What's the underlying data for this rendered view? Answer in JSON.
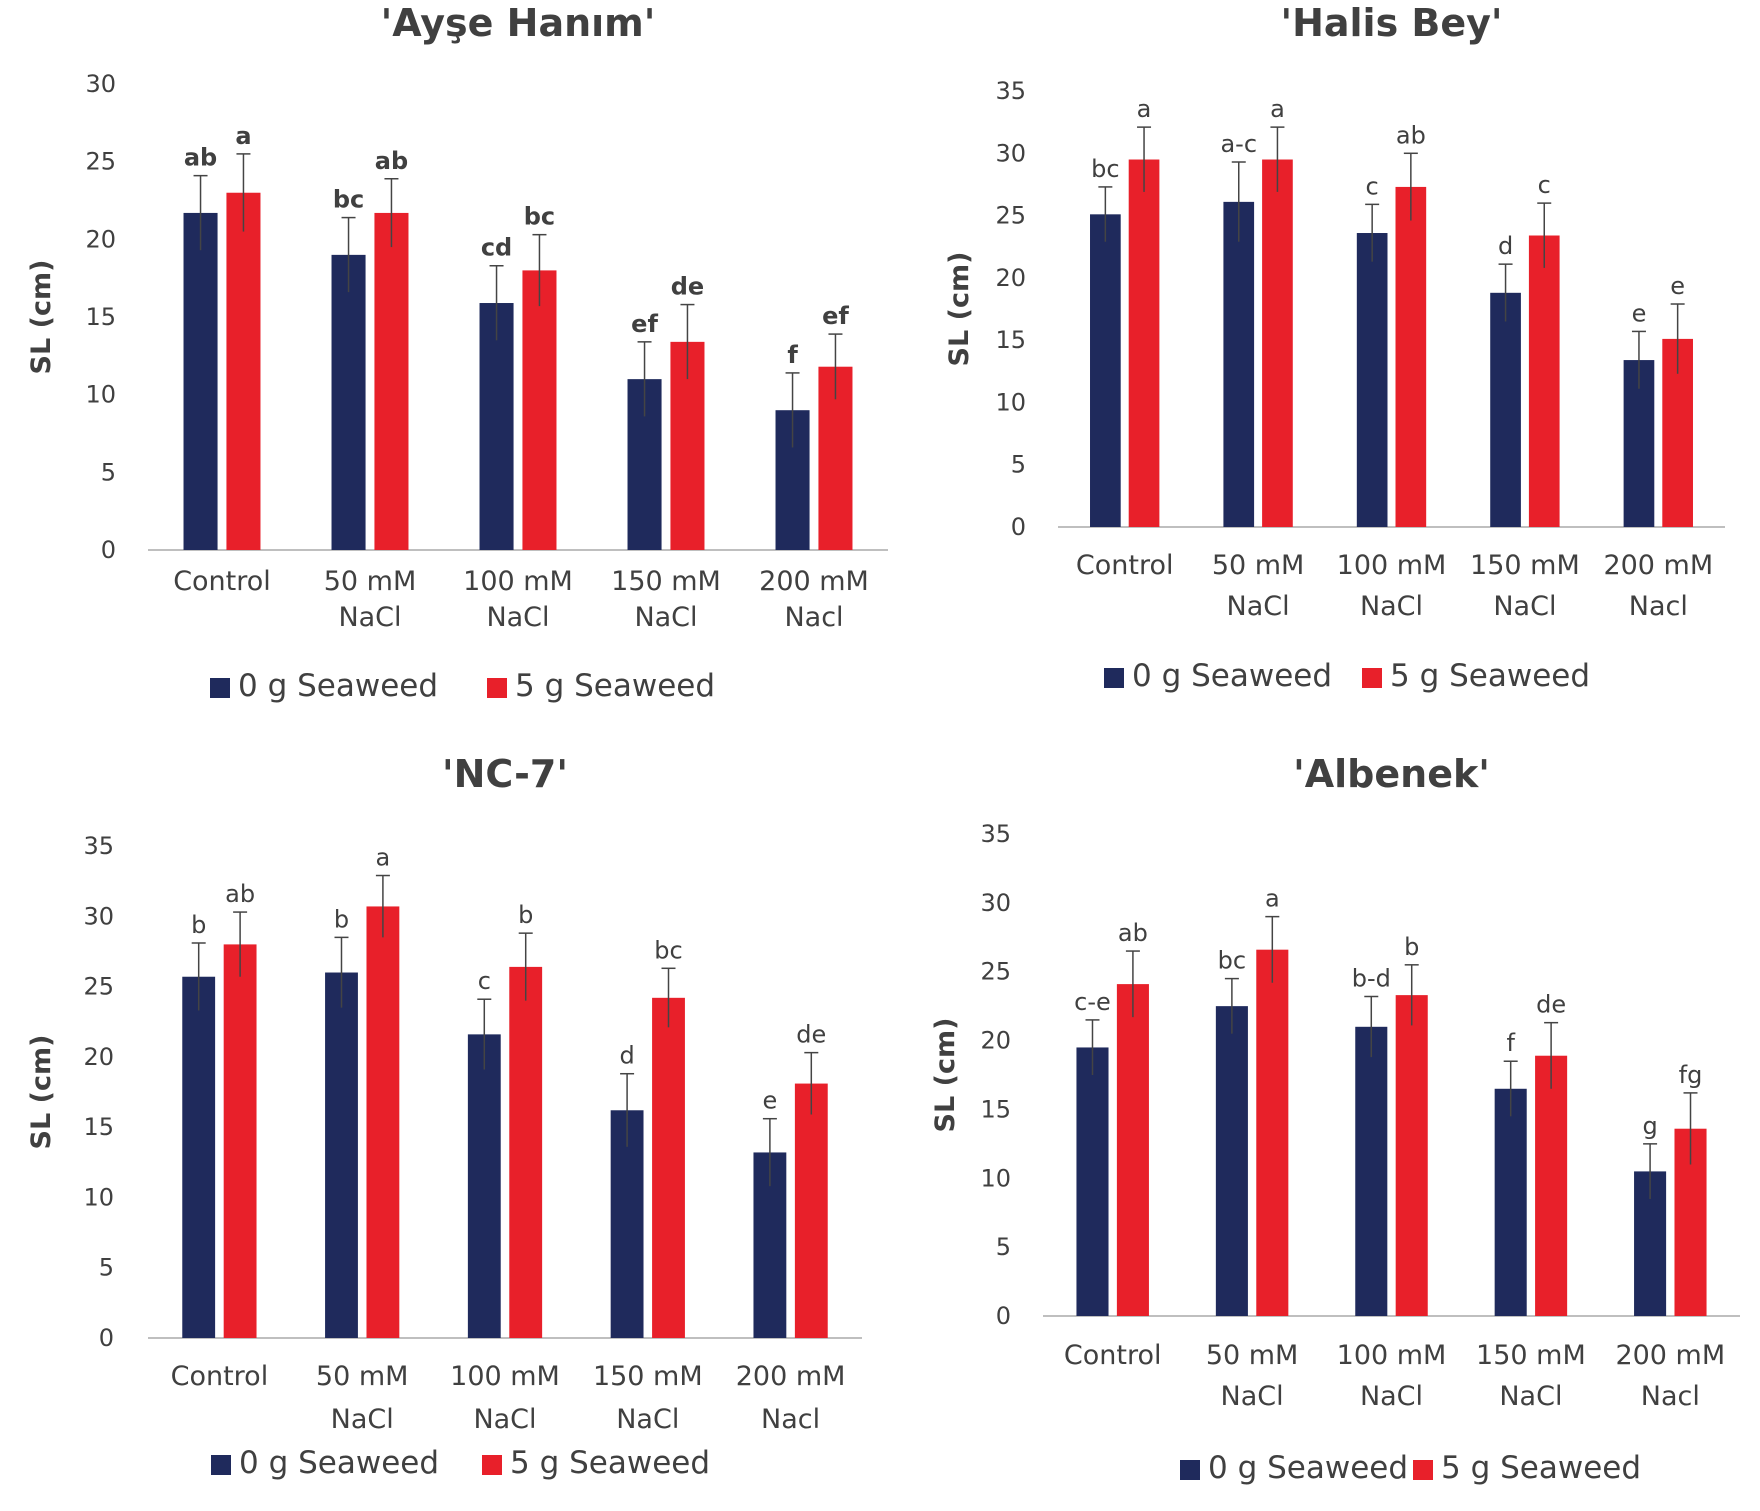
{
  "colors": {
    "series0": "#1f2a5c",
    "series1": "#e8202a",
    "text": "#404040",
    "axis": "#bfbfbf"
  },
  "legend": {
    "series0": "0 g Seaweed",
    "series1": "5 g Seaweed"
  },
  "chart_data": [
    {
      "type": "bar",
      "title": "'Ayşe Hanım'",
      "ylabel": "SL (cm)",
      "xlabel": "",
      "ylim": [
        0,
        30
      ],
      "yticks": [
        0,
        5,
        10,
        15,
        20,
        25,
        30
      ],
      "categories": [
        [
          "Control"
        ],
        [
          "50 mM",
          "NaCl"
        ],
        [
          "100 mM",
          "NaCl"
        ],
        [
          "150 mM",
          "NaCl"
        ],
        [
          "200 mM",
          "Nacl"
        ]
      ],
      "series": [
        {
          "name": "0 g Seaweed",
          "values": [
            21.7,
            19.0,
            15.9,
            11.0,
            9.0
          ],
          "errors": [
            2.4,
            2.4,
            2.4,
            2.4,
            2.4
          ],
          "labels": [
            "ab",
            "bc",
            "cd",
            "ef",
            "f"
          ]
        },
        {
          "name": "5 g Seaweed",
          "values": [
            23.0,
            21.7,
            18.0,
            13.4,
            11.8
          ],
          "errors": [
            2.5,
            2.2,
            2.3,
            2.4,
            2.1
          ],
          "labels": [
            "a",
            "ab",
            "bc",
            "de",
            "ef"
          ]
        }
      ],
      "legend_position": "bottom"
    },
    {
      "type": "bar",
      "title": "'Halis Bey'",
      "ylabel": "SL (cm)",
      "xlabel": "",
      "ylim": [
        0,
        35
      ],
      "yticks": [
        0,
        5,
        10,
        15,
        20,
        25,
        30,
        35
      ],
      "categories": [
        [
          "Control"
        ],
        [
          "50 mM",
          "NaCl"
        ],
        [
          "100 mM",
          "NaCl"
        ],
        [
          "150 mM",
          "NaCl"
        ],
        [
          "200 mM",
          "Nacl"
        ]
      ],
      "series": [
        {
          "name": "0 g Seaweed",
          "values": [
            25.1,
            26.1,
            23.6,
            18.8,
            13.4
          ],
          "errors": [
            2.2,
            3.2,
            2.3,
            2.3,
            2.3
          ],
          "labels": [
            "bc",
            "a-c",
            "c",
            "d",
            "e"
          ]
        },
        {
          "name": "5 g Seaweed",
          "values": [
            29.5,
            29.5,
            27.3,
            23.4,
            15.1
          ],
          "errors": [
            2.6,
            2.6,
            2.7,
            2.6,
            2.8
          ],
          "labels": [
            "a",
            "a",
            "ab",
            "c",
            "e"
          ]
        }
      ],
      "legend_position": "bottom"
    },
    {
      "type": "bar",
      "title": "'NC-7'",
      "ylabel": "SL (cm)",
      "xlabel": "",
      "ylim": [
        0,
        35
      ],
      "yticks": [
        0,
        5,
        10,
        15,
        20,
        25,
        30,
        35
      ],
      "categories": [
        [
          "Control"
        ],
        [
          "50 mM",
          "NaCl"
        ],
        [
          "100 mM",
          "NaCl"
        ],
        [
          "150 mM",
          "NaCl"
        ],
        [
          "200 mM",
          "Nacl"
        ]
      ],
      "series": [
        {
          "name": "0 g Seaweed",
          "values": [
            25.7,
            26.0,
            21.6,
            16.2,
            13.2
          ],
          "errors": [
            2.4,
            2.5,
            2.5,
            2.6,
            2.4
          ],
          "labels": [
            "b",
            "b",
            "c",
            "d",
            "e"
          ]
        },
        {
          "name": "5 g Seaweed",
          "values": [
            28.0,
            30.7,
            26.4,
            24.2,
            18.1
          ],
          "errors": [
            2.3,
            2.2,
            2.4,
            2.1,
            2.2
          ],
          "labels": [
            "ab",
            "a",
            "b",
            "bc",
            "de"
          ]
        }
      ],
      "legend_position": "bottom"
    },
    {
      "type": "bar",
      "title": "'Albenek'",
      "ylabel": "SL (cm)",
      "xlabel": "",
      "ylim": [
        0,
        35
      ],
      "yticks": [
        0,
        5,
        10,
        15,
        20,
        25,
        30,
        35
      ],
      "categories": [
        [
          "Control"
        ],
        [
          "50 mM",
          "NaCl"
        ],
        [
          "100 mM",
          "NaCl"
        ],
        [
          "150 mM",
          "NaCl"
        ],
        [
          "200 mM",
          "Nacl"
        ]
      ],
      "series": [
        {
          "name": "0 g Seaweed",
          "values": [
            19.5,
            22.5,
            21.0,
            16.5,
            10.5
          ],
          "errors": [
            2.0,
            2.0,
            2.2,
            2.0,
            2.0
          ],
          "labels": [
            "c-e",
            "bc",
            "b-d",
            "f",
            "g"
          ]
        },
        {
          "name": "5 g Seaweed",
          "values": [
            24.1,
            26.6,
            23.3,
            18.9,
            13.6
          ],
          "errors": [
            2.4,
            2.4,
            2.2,
            2.4,
            2.6
          ],
          "labels": [
            "ab",
            "a",
            "b",
            "de",
            "fg"
          ]
        }
      ],
      "legend_position": "bottom"
    }
  ]
}
